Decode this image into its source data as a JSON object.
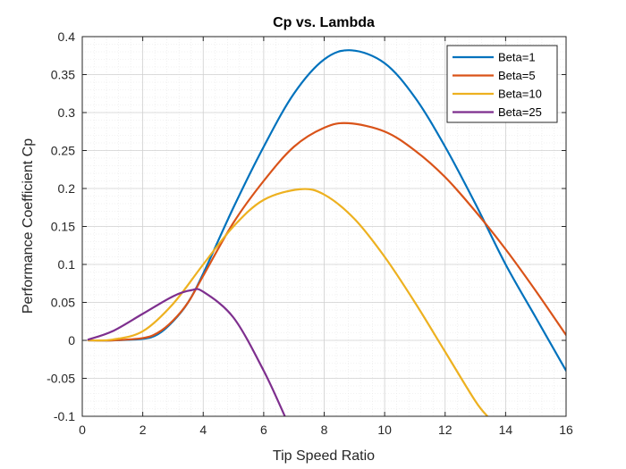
{
  "chart_data": {
    "type": "line",
    "title": "Cp vs. Lambda",
    "xlabel": "Tip Speed Ratio",
    "ylabel": "Performance Coefficient Cp",
    "xlim": [
      0,
      16
    ],
    "ylim": [
      -0.1,
      0.4
    ],
    "xticks": [
      0,
      2,
      4,
      6,
      8,
      10,
      12,
      14,
      16
    ],
    "xtick_labels": [
      "0",
      "2",
      "4",
      "6",
      "8",
      "10",
      "12",
      "14",
      "16"
    ],
    "yticks": [
      -0.1,
      -0.05,
      0,
      0.05,
      0.1,
      0.15,
      0.2,
      0.25,
      0.3,
      0.35,
      0.4
    ],
    "ytick_labels": [
      "-0.1",
      "-0.05",
      "0",
      "0.05",
      "0.1",
      "0.15",
      "0.2",
      "0.25",
      "0.3",
      "0.35",
      "0.4"
    ],
    "grid": true,
    "minor_grid": true,
    "legend_position": "top-right",
    "series": [
      {
        "name": "Beta=1",
        "color": "#0072BD",
        "x": [
          0.2,
          1,
          2,
          2.5,
          3,
          3.5,
          4,
          5,
          6,
          7,
          8,
          8.9,
          10,
          11,
          12,
          13,
          14,
          15,
          16
        ],
        "y": [
          0,
          0,
          0.002,
          0.008,
          0.025,
          0.05,
          0.088,
          0.175,
          0.255,
          0.325,
          0.37,
          0.382,
          0.365,
          0.32,
          0.255,
          0.18,
          0.1,
          0.03,
          -0.04
        ]
      },
      {
        "name": "Beta=5",
        "color": "#D95319",
        "x": [
          0.2,
          1,
          2,
          2.5,
          3,
          3.5,
          4,
          5,
          6,
          7,
          8,
          8.8,
          10,
          11,
          12,
          13,
          14,
          15,
          16
        ],
        "y": [
          0,
          0,
          0.003,
          0.01,
          0.026,
          0.05,
          0.085,
          0.155,
          0.21,
          0.255,
          0.28,
          0.286,
          0.275,
          0.25,
          0.215,
          0.17,
          0.12,
          0.065,
          0.007
        ]
      },
      {
        "name": "Beta=10",
        "color": "#EDB120",
        "x": [
          0.2,
          1,
          2,
          3,
          4,
          5,
          6,
          7.2,
          8,
          9,
          10,
          11,
          12,
          13,
          13.4
        ],
        "y": [
          0,
          0.001,
          0.012,
          0.048,
          0.1,
          0.15,
          0.185,
          0.199,
          0.192,
          0.16,
          0.11,
          0.05,
          -0.015,
          -0.08,
          -0.1
        ]
      },
      {
        "name": "Beta=25",
        "color": "#7E2F8E",
        "x": [
          0.2,
          1,
          2,
          3,
          3.6,
          4,
          5,
          6,
          6.7
        ],
        "y": [
          0.001,
          0.012,
          0.035,
          0.058,
          0.066,
          0.064,
          0.03,
          -0.04,
          -0.1
        ]
      }
    ]
  }
}
